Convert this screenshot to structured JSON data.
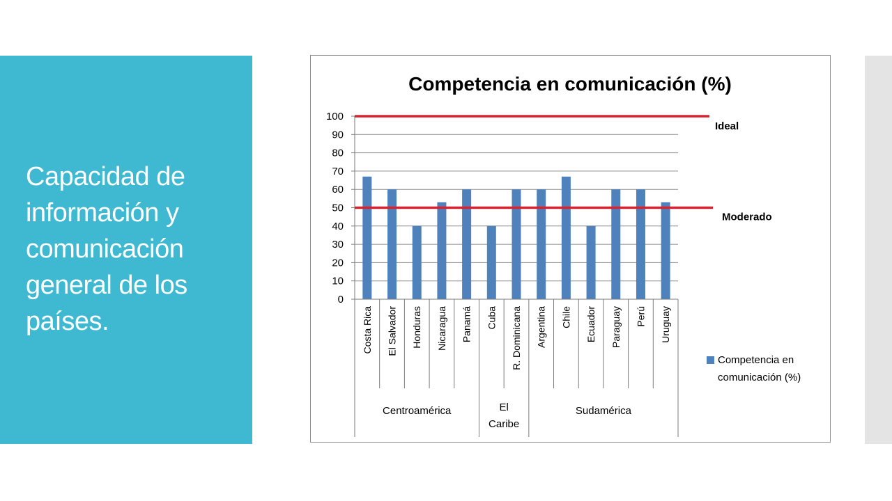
{
  "slide": {
    "title_lines": [
      "Capacidad de",
      "información y",
      "comunicación",
      "general de los",
      "países."
    ],
    "panel_color": "#3fb8d1"
  },
  "chart_data": {
    "type": "bar",
    "title": "Competencia en comunicación (%)",
    "categories": [
      "Costa Rica",
      "El Salvador",
      "Honduras",
      "Nicaragua",
      "Panamá",
      "Cuba",
      "R. Dominicana",
      "Argentina",
      "Chile",
      "Ecuador",
      "Paraguay",
      "Perú",
      "Uruguay"
    ],
    "series": [
      {
        "name": "Competencia en comunicación (%)",
        "legend_lines": [
          "Competencia en",
          "comunicación (%)"
        ],
        "values": [
          67,
          60,
          40,
          53,
          60,
          40,
          60,
          60,
          67,
          40,
          60,
          60,
          53
        ],
        "color": "#4f81bd"
      }
    ],
    "groups": [
      {
        "label_lines": [
          "Centroamérica"
        ],
        "start": 0,
        "end": 4
      },
      {
        "label_lines": [
          "El",
          "Caribe"
        ],
        "start": 5,
        "end": 6
      },
      {
        "label_lines": [
          "Sudamérica"
        ],
        "start": 7,
        "end": 12
      }
    ],
    "reference_lines": [
      {
        "label": "Ideal",
        "value": 100,
        "color": "#d9222f"
      },
      {
        "label": "Moderado",
        "value": 50,
        "color": "#d9222f"
      }
    ],
    "yticks": [
      0,
      10,
      20,
      30,
      40,
      50,
      60,
      70,
      80,
      90,
      100
    ],
    "ylim": [
      0,
      100
    ],
    "grid": true,
    "legend_position": "right"
  }
}
